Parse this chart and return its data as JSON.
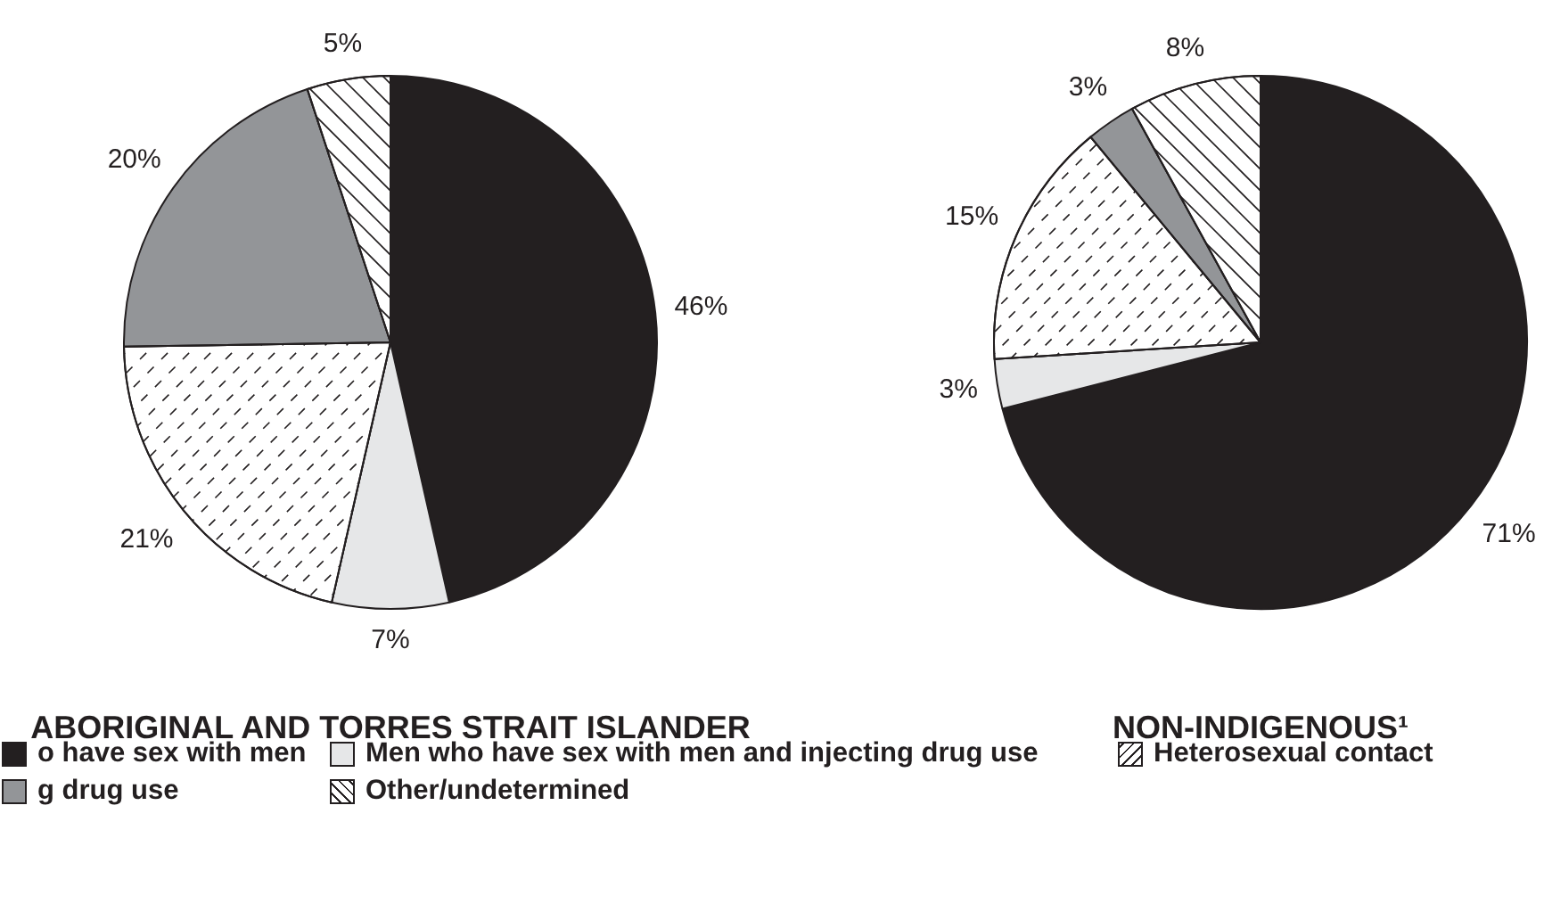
{
  "chart_data": [
    {
      "type": "pie",
      "title": "ABORIGINAL AND TORRES STRAIT ISLANDER",
      "categories": [
        "o have sex with men",
        "Men who have sex with men and injecting drug use",
        "Heterosexual contact",
        "g drug use",
        "Other/undetermined"
      ],
      "values": [
        46,
        7,
        21,
        20,
        5
      ],
      "colors": [
        "#231f20",
        "#e6e7e8",
        "#ffffff",
        "#939598",
        "#ffffff"
      ],
      "value_labels": [
        "46%",
        "7%",
        "21%",
        "20%",
        "5%"
      ],
      "legend": "bottom"
    },
    {
      "type": "pie",
      "title": "NON-INDIGENOUS¹",
      "categories": [
        null,
        null,
        null,
        null,
        null
      ],
      "values": [
        71,
        3,
        15,
        3,
        8
      ],
      "colors": [
        "#231f20",
        "#e6e7e8",
        "#ffffff",
        "#939598",
        "#ffffff"
      ],
      "value_labels": [
        "71%",
        "3%",
        "15%",
        "3%",
        "8%"
      ]
    }
  ]
}
